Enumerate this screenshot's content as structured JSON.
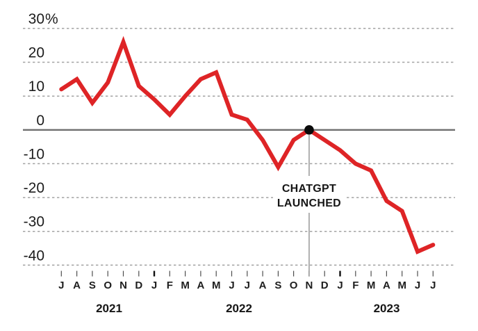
{
  "colors": {
    "line": "#de2426",
    "dot": "#0a0a0a",
    "grid": "#a3a3a3",
    "zero_axis": "#6f6f6f",
    "text": "#1c1c1c",
    "background": "#ffffff"
  },
  "chart_data": {
    "type": "line",
    "title": "",
    "xlabel": "",
    "ylabel": "",
    "ylim": [
      -40,
      30
    ],
    "grid": "dashed-horizontal",
    "legend_position": "none",
    "ytick_values": [
      30,
      20,
      10,
      0,
      -10,
      -20,
      -30,
      -40
    ],
    "ytick_labels": [
      "30%",
      "20",
      "10",
      "0",
      "-10",
      "-20",
      "-30",
      "-40"
    ],
    "x_tick_labels": [
      "J",
      "A",
      "S",
      "O",
      "N",
      "D",
      "J",
      "F",
      "M",
      "A",
      "M",
      "J",
      "J",
      "A",
      "S",
      "O",
      "N",
      "D",
      "J",
      "F",
      "M",
      "A",
      "M",
      "J",
      "J"
    ],
    "year_labels": [
      "2021",
      "2022",
      "2023"
    ],
    "year_start_tick_indices": [
      0,
      6,
      18
    ],
    "series": [
      {
        "name": "percent-change-line",
        "color": "#de2426",
        "values": [
          12,
          15,
          8,
          14,
          26,
          13,
          9,
          4.5,
          10,
          15,
          17,
          4.5,
          3,
          -3,
          -11,
          -3,
          0,
          -3,
          -6,
          -10,
          -12,
          -21,
          -24,
          -36,
          -34
        ]
      }
    ],
    "annotation": {
      "line1": "CHATGPT",
      "line2": "LAUNCHED",
      "tick_index": 16,
      "value": 0,
      "marker": "filled-circle"
    }
  }
}
